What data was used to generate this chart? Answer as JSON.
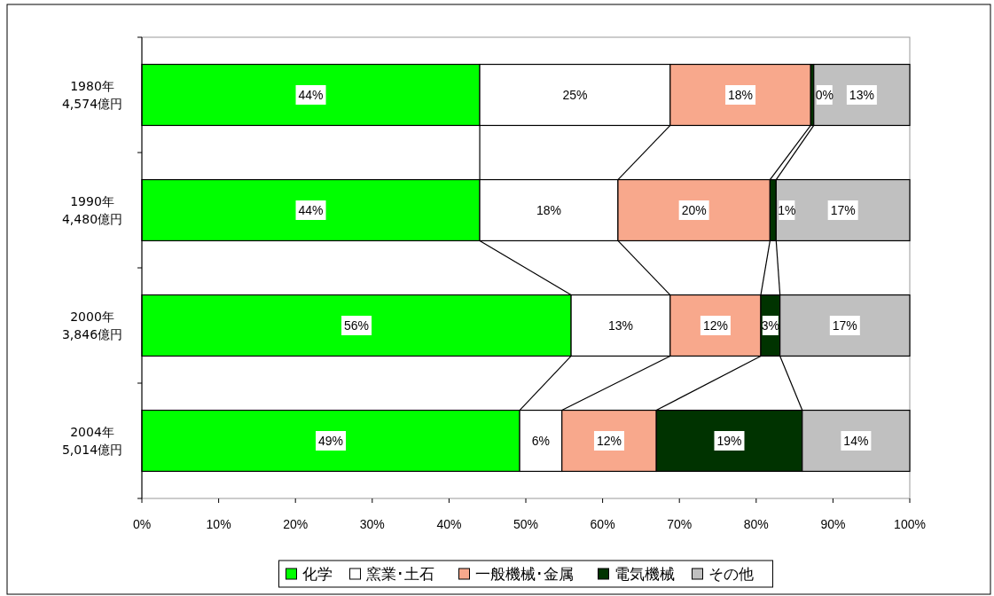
{
  "chart_data": {
    "type": "bar",
    "orientation": "horizontal",
    "stacked": true,
    "categories": [
      "1980年\n4,574億円",
      "1990年\n4,480億円",
      "2000年\n3,846億円",
      "2004年\n5,014億円"
    ],
    "series": [
      {
        "name": "化学",
        "color": "#00ff00",
        "values": [
          44.0,
          44.0,
          55.9,
          49.2
        ],
        "value_labels": [
          "44%",
          "44%",
          "56%",
          "49%"
        ]
      },
      {
        "name": "窯業･土石",
        "color": "#ffffff",
        "values": [
          24.8,
          18.0,
          12.9,
          5.5
        ],
        "value_labels": [
          "25%",
          "18%",
          "13%",
          "6%"
        ]
      },
      {
        "name": "一般機械･金属",
        "color": "#f8a88c",
        "values": [
          18.3,
          19.8,
          11.8,
          12.3
        ],
        "value_labels": [
          "18%",
          "20%",
          "12%",
          "12%"
        ]
      },
      {
        "name": "電気機械",
        "color": "#003300",
        "values": [
          0.4,
          0.8,
          2.5,
          19.0
        ],
        "value_labels": [
          "0%",
          "1%",
          "3%",
          "19%"
        ]
      },
      {
        "name": "その他",
        "color": "#c0c0c0",
        "values": [
          12.5,
          17.4,
          16.9,
          14.0
        ],
        "value_labels": [
          "13%",
          "17%",
          "17%",
          "14%"
        ]
      }
    ],
    "xlim": [
      0,
      100
    ],
    "xticks": [
      {
        "value": 0,
        "label": "0%"
      },
      {
        "value": 10,
        "label": "10%"
      },
      {
        "value": 20,
        "label": "20%"
      },
      {
        "value": 30,
        "label": "30%"
      },
      {
        "value": 40,
        "label": "40%"
      },
      {
        "value": 50,
        "label": "50%"
      },
      {
        "value": 60,
        "label": "60%"
      },
      {
        "value": 70,
        "label": "70%"
      },
      {
        "value": 80,
        "label": "80%"
      },
      {
        "value": 90,
        "label": "90%"
      },
      {
        "value": 100,
        "label": "100%"
      }
    ],
    "grid": false,
    "legend": "bottom"
  }
}
